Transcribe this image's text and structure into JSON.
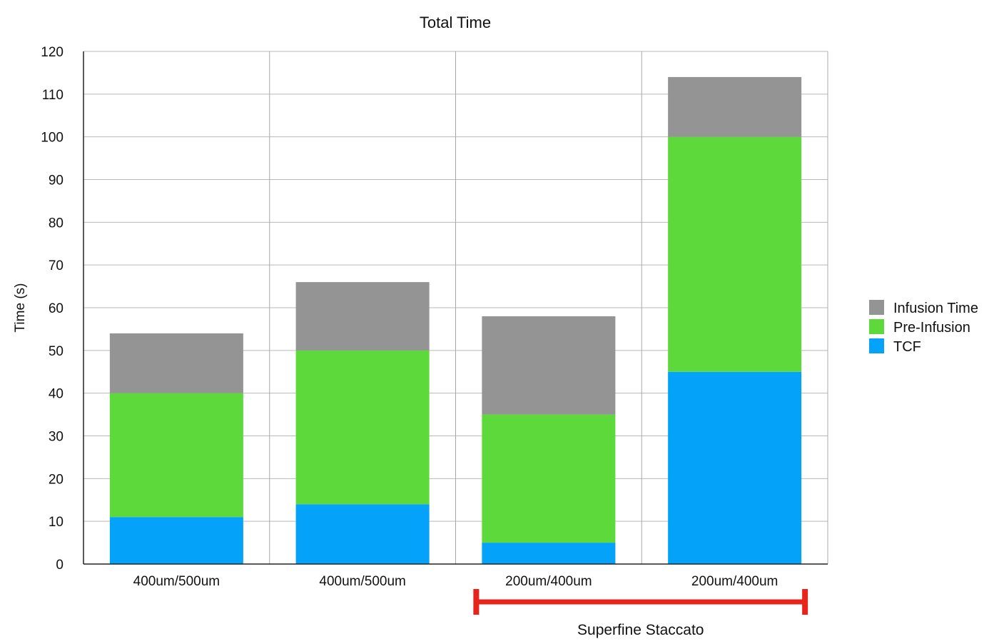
{
  "chart_data": {
    "type": "bar",
    "stacked": true,
    "title": "Total Time",
    "xlabel": "",
    "ylabel": "Time (s)",
    "ylim": [
      0,
      120
    ],
    "ytick_step": 10,
    "grid": true,
    "legend_position": "right",
    "categories": [
      "400um/500um",
      "400um/500um",
      "200um/400um",
      "200um/400um"
    ],
    "series": [
      {
        "name": "TCF",
        "color": "#05a2fa",
        "values": [
          11,
          14,
          5,
          45
        ]
      },
      {
        "name": "Pre-Infusion",
        "color": "#5dd93b",
        "values": [
          29,
          36,
          30,
          55
        ]
      },
      {
        "name": "Infusion Time",
        "color": "#949494",
        "values": [
          14,
          16,
          23,
          14
        ]
      }
    ],
    "legend_order": [
      "Infusion Time",
      "Pre-Infusion",
      "TCF"
    ],
    "annotation": {
      "text": "Superfine Staccato",
      "color": "#e8231b",
      "spans_categories": [
        2,
        3
      ]
    }
  }
}
